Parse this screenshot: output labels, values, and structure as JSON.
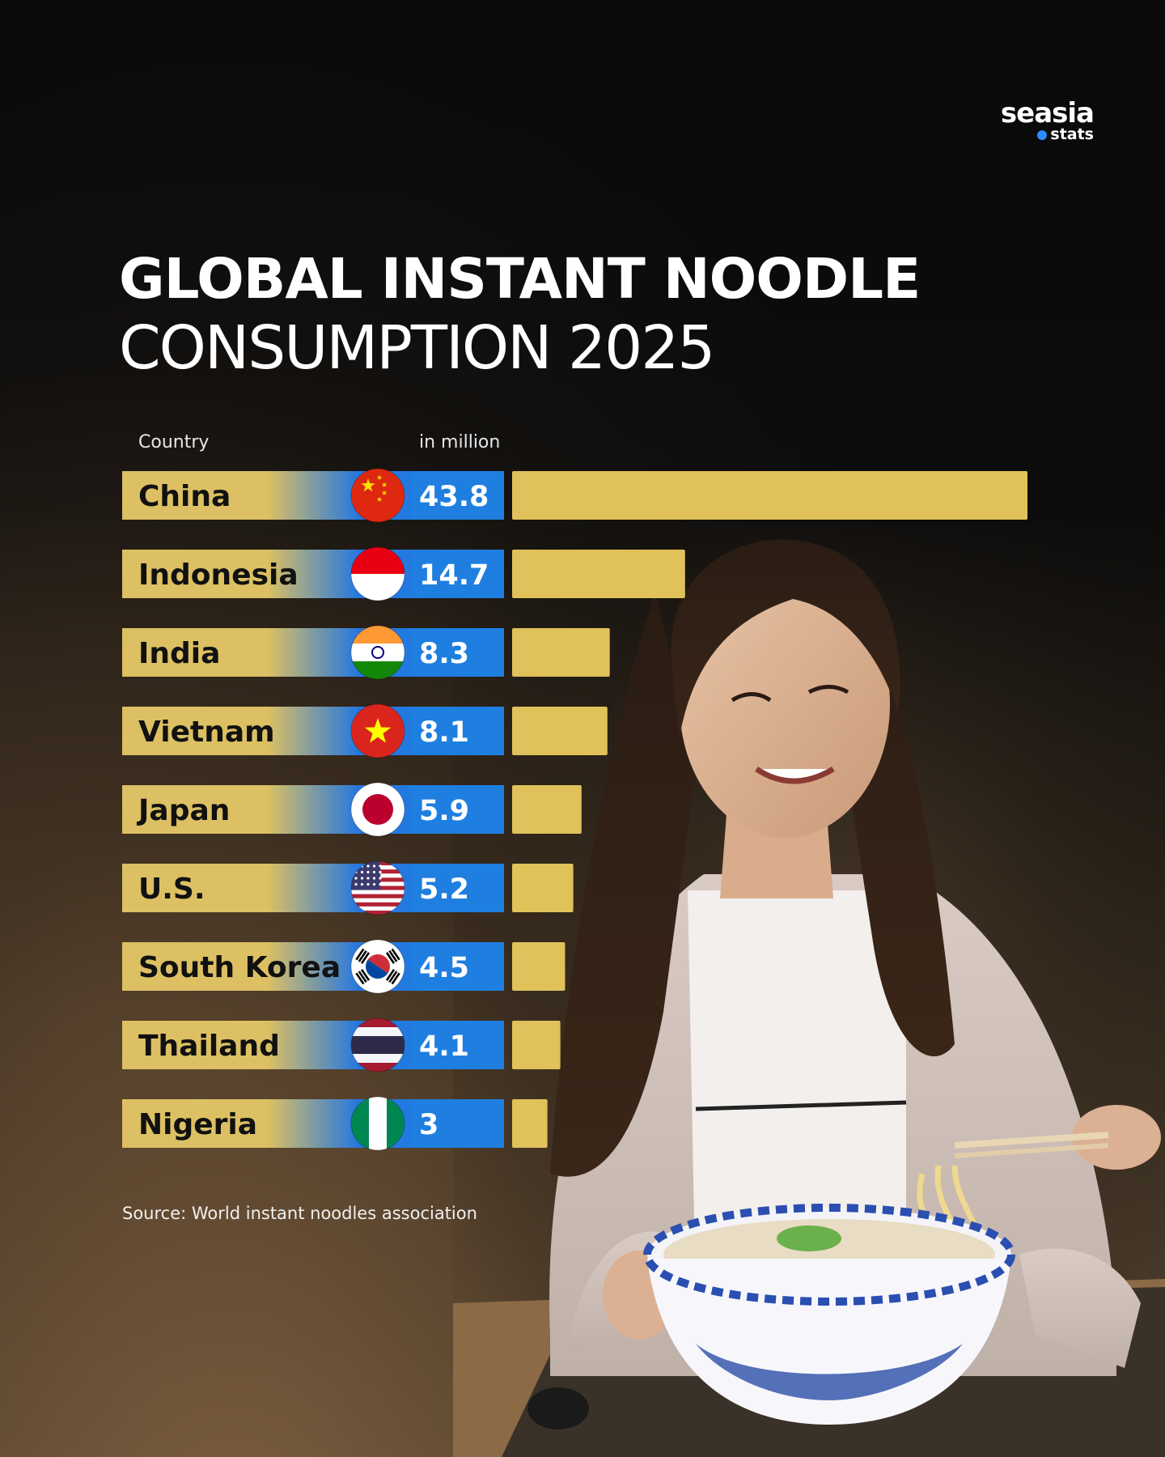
{
  "brand": {
    "name": "seasia",
    "sub": "stats",
    "dot_color": "#2a8cff"
  },
  "header": {
    "title": "GLOBAL INSTANT NOODLE",
    "subtitle": "CONSUMPTION 2025"
  },
  "columns": {
    "country": "Country",
    "unit": "in million"
  },
  "colors": {
    "gold": "#e0c15a",
    "blue": "#1f7fe0",
    "label_gradient_start": "#dcc063",
    "label_gradient_end": "#2477e0"
  },
  "chart_data": {
    "type": "bar",
    "orientation": "horizontal",
    "categories": [
      "China",
      "Indonesia",
      "India",
      "Vietnam",
      "Japan",
      "U.S.",
      "South Korea",
      "Thailand",
      "Nigeria"
    ],
    "values": [
      43.8,
      14.7,
      8.3,
      8.1,
      5.9,
      5.2,
      4.5,
      4.1,
      3
    ],
    "value_labels": [
      "43.8",
      "14.7",
      "8.3",
      "8.1",
      "5.9",
      "5.2",
      "4.5",
      "4.1",
      "3"
    ],
    "flags": [
      "china-flag",
      "indonesia-flag",
      "india-flag",
      "vietnam-flag",
      "japan-flag",
      "us-flag",
      "south-korea-flag",
      "thailand-flag",
      "nigeria-flag"
    ],
    "xlim": [
      0,
      43.8
    ],
    "bar_color": "#e0c15a",
    "grid": false,
    "legend": "none"
  },
  "source": "Source: World instant noodles association"
}
